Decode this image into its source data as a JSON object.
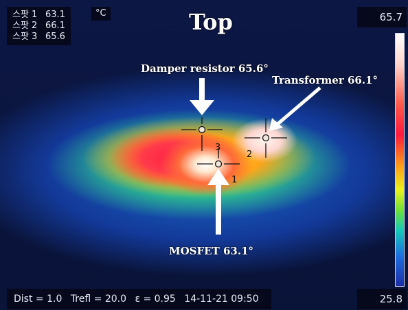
{
  "spots": [
    {
      "label": "스팟 1",
      "value": "63.1"
    },
    {
      "label": "스팟 2",
      "value": "66.1"
    },
    {
      "label": "스팟 3",
      "value": "65.6"
    }
  ],
  "unit": "°C",
  "title": "Top",
  "scale": {
    "max": "65.7",
    "min": "25.8"
  },
  "annotations": {
    "damper": "Damper resistor 65.6°",
    "transformer": "Transformer 66.1°",
    "mosfet": "MOSFET 63.1°"
  },
  "markers": {
    "m1": "1",
    "m2": "2",
    "m3": "3"
  },
  "info": {
    "dist": "Dist = 1.0",
    "trefl": "Trefl = 20.0",
    "emissivity": "ε = 0.95",
    "datetime": "14-11-21 09:50"
  },
  "colors": {
    "panel_bg": "#06091c",
    "panel_text": "#e9ecf6",
    "annotation": "#ffffff"
  }
}
